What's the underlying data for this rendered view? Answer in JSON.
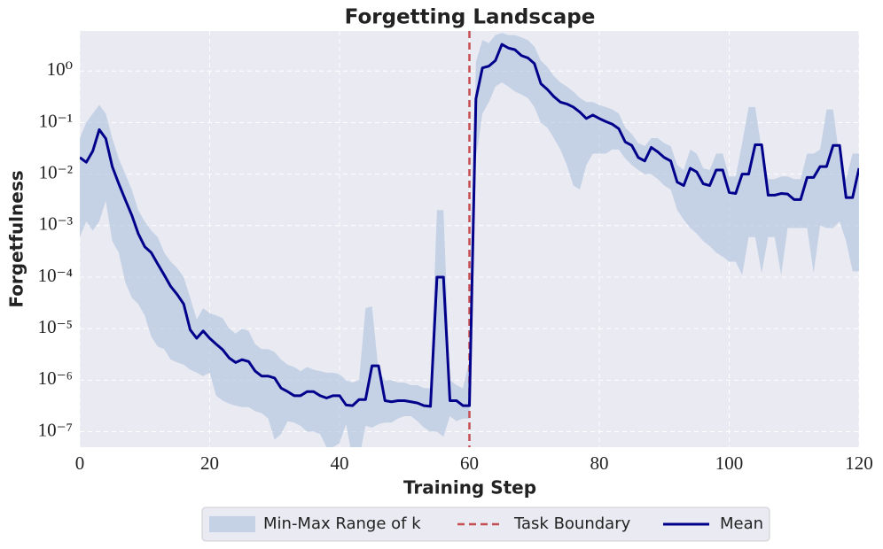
{
  "chart_data": {
    "type": "line",
    "title": "Forgetting Landscape",
    "x_label": "Training Step",
    "y_label": "Forgetfulness",
    "log_y": true,
    "grid": true,
    "legend": "bottom",
    "x": [
      0,
      1,
      2,
      3,
      4,
      5,
      6,
      7,
      8,
      9,
      10,
      11,
      12,
      13,
      14,
      15,
      16,
      17,
      18,
      19,
      20,
      21,
      22,
      23,
      24,
      25,
      26,
      27,
      28,
      29,
      30,
      31,
      32,
      33,
      34,
      35,
      36,
      37,
      38,
      39,
      40,
      41,
      42,
      43,
      44,
      45,
      46,
      47,
      48,
      49,
      50,
      51,
      52,
      53,
      54,
      55,
      56,
      57,
      58,
      59,
      60,
      61,
      62,
      63,
      64,
      65,
      66,
      67,
      68,
      69,
      70,
      71,
      72,
      73,
      74,
      75,
      76,
      77,
      78,
      79,
      80,
      81,
      82,
      83,
      84,
      85,
      86,
      87,
      88,
      89,
      90,
      91,
      92,
      93,
      94,
      95,
      96,
      97,
      98,
      99,
      100,
      101,
      102,
      103,
      104,
      105,
      106,
      107,
      108,
      109,
      110,
      111,
      112,
      113,
      114,
      115,
      116,
      117,
      118,
      119,
      120
    ],
    "band": {
      "name": "Min-Max Range of k",
      "color": "#b0c4de",
      "max": [
        0.05,
        0.1,
        0.15,
        0.22,
        0.15,
        0.05,
        0.02,
        0.01,
        0.005,
        0.002,
        0.0012,
        0.0008,
        0.0006,
        0.0003,
        0.0002,
        0.00015,
        0.0001,
        4e-05,
        1.5e-05,
        2.5e-05,
        2e-05,
        1.8e-05,
        1.6e-05,
        1e-05,
        8e-06,
        1e-05,
        9e-06,
        5e-06,
        4e-06,
        4e-06,
        3.5e-06,
        2.5e-06,
        2e-06,
        1.8e-06,
        1.5e-06,
        1.8e-06,
        1.6e-06,
        1.5e-06,
        1.4e-06,
        1.4e-06,
        1.3e-06,
        1e-06,
        9e-07,
        1e-06,
        2.5e-05,
        2.7e-05,
        1.5e-06,
        1e-06,
        1e-06,
        9e-07,
        9e-07,
        8e-07,
        8e-07,
        7e-07,
        7e-07,
        0.002,
        0.002,
        1e-06,
        8e-07,
        7e-07,
        2.5e-06,
        1.5,
        4,
        3.5,
        5,
        5.5,
        5,
        5,
        4.5,
        4,
        3,
        1.6,
        1.2,
        0.8,
        0.6,
        0.5,
        0.4,
        0.3,
        0.25,
        0.25,
        0.22,
        0.2,
        0.18,
        0.15,
        0.08,
        0.06,
        0.04,
        0.035,
        0.05,
        0.05,
        0.04,
        0.035,
        0.015,
        0.012,
        0.03,
        0.025,
        0.013,
        0.012,
        0.025,
        0.025,
        0.009,
        0.009,
        0.04,
        0.2,
        0.2,
        0.03,
        0.008,
        0.008,
        0.009,
        0.009,
        0.008,
        0.008,
        0.025,
        0.025,
        0.03,
        0.18,
        0.18,
        0.02,
        0.008,
        0.025,
        0.025
      ],
      "min": [
        0.0006,
        0.0012,
        0.0008,
        0.0012,
        0.003,
        0.0005,
        0.0003,
        8e-05,
        4e-05,
        3e-05,
        1.8e-05,
        7e-06,
        4.5e-06,
        4e-06,
        2.5e-06,
        2.2e-06,
        2e-06,
        1.6e-06,
        1.4e-06,
        1.2e-06,
        1.4e-06,
        5e-07,
        4e-07,
        3.5e-07,
        3.2e-07,
        3e-07,
        3e-07,
        2.5e-07,
        2.3e-07,
        1.8e-07,
        7e-08,
        9e-08,
        1.6e-07,
        1.5e-07,
        1.3e-07,
        1e-07,
        1e-07,
        9e-08,
        5e-08,
        5e-08,
        6e-08,
        1.4e-07,
        3e-08,
        3e-08,
        1.3e-07,
        1.2e-07,
        1.4e-07,
        1.5e-07,
        1.5e-07,
        1.8e-07,
        2e-07,
        2e-07,
        1.6e-07,
        1.2e-07,
        1e-07,
        1e-07,
        8e-08,
        2e-07,
        1.6e-07,
        1.8e-07,
        1.8e-07,
        0.02,
        0.15,
        0.25,
        0.5,
        0.6,
        0.5,
        0.4,
        0.35,
        0.3,
        0.2,
        0.1,
        0.08,
        0.05,
        0.03,
        0.015,
        0.006,
        0.005,
        0.015,
        0.025,
        0.025,
        0.025,
        0.03,
        0.03,
        0.02,
        0.015,
        0.012,
        0.01,
        0.01,
        0.008,
        0.006,
        0.005,
        0.002,
        0.0013,
        0.0009,
        0.0007,
        0.0005,
        0.0004,
        0.0003,
        0.00025,
        0.0002,
        0.0002,
        0.00011,
        0.0006,
        0.0006,
        0.00012,
        0.0006,
        0.0006,
        0.00011,
        0.0009,
        0.0009,
        0.0009,
        0.0009,
        0.00012,
        0.001,
        0.0009,
        0.0009,
        0.0012,
        0.0005,
        0.00013,
        0.00013
      ]
    },
    "vline": {
      "name": "Task Boundary",
      "x": 60,
      "color": "#c44e52"
    },
    "series": [
      {
        "name": "Mean",
        "color": "#00008b",
        "values": [
          0.021,
          0.017,
          0.028,
          0.073,
          0.049,
          0.014,
          0.0065,
          0.0032,
          0.0016,
          0.0007,
          0.00039,
          0.0003,
          0.00018,
          0.00011,
          6.6e-05,
          4.6e-05,
          3e-05,
          9.5e-06,
          6.5e-06,
          9e-06,
          6.5e-06,
          5e-06,
          3.9e-06,
          2.7e-06,
          2.2e-06,
          2.5e-06,
          2.3e-06,
          1.5e-06,
          1.2e-06,
          1.2e-06,
          1.1e-06,
          7e-07,
          6e-07,
          5e-07,
          5e-07,
          6e-07,
          6e-07,
          5e-07,
          4.5e-07,
          5e-07,
          5e-07,
          3.3e-07,
          3.2e-07,
          4.2e-07,
          4.2e-07,
          1.9e-06,
          1.9e-06,
          4e-07,
          3.8e-07,
          4e-07,
          4e-07,
          3.8e-07,
          3.6e-07,
          3.2e-07,
          3.1e-07,
          0.0001,
          0.0001,
          4e-07,
          4e-07,
          3.2e-07,
          3.2e-07,
          0.29,
          1.15,
          1.25,
          1.6,
          3.3,
          2.8,
          2.6,
          2.0,
          1.8,
          1.4,
          0.57,
          0.44,
          0.32,
          0.25,
          0.23,
          0.2,
          0.16,
          0.12,
          0.14,
          0.12,
          0.105,
          0.093,
          0.076,
          0.042,
          0.036,
          0.021,
          0.018,
          0.033,
          0.027,
          0.021,
          0.018,
          0.007,
          0.006,
          0.013,
          0.011,
          0.0065,
          0.006,
          0.012,
          0.012,
          0.0044,
          0.0042,
          0.01,
          0.01,
          0.037,
          0.037,
          0.0039,
          0.0039,
          0.0042,
          0.0041,
          0.0032,
          0.0032,
          0.0086,
          0.0086,
          0.014,
          0.014,
          0.036,
          0.036,
          0.0035,
          0.0035,
          0.013
        ]
      }
    ],
    "xlim": [
      0,
      120
    ],
    "xticks": [
      0,
      20,
      40,
      60,
      80,
      100,
      120
    ],
    "ylim": [
      5e-08,
      6
    ],
    "yticks": [
      {
        "value": 1e-07,
        "label": "10⁻⁷"
      },
      {
        "value": 1e-06,
        "label": "10⁻⁶"
      },
      {
        "value": 1e-05,
        "label": "10⁻⁵"
      },
      {
        "value": 0.0001,
        "label": "10⁻⁴"
      },
      {
        "value": 0.001,
        "label": "10⁻³"
      },
      {
        "value": 0.01,
        "label": "10⁻²"
      },
      {
        "value": 0.1,
        "label": "10⁻¹"
      },
      {
        "value": 1,
        "label": "10⁰"
      }
    ]
  }
}
